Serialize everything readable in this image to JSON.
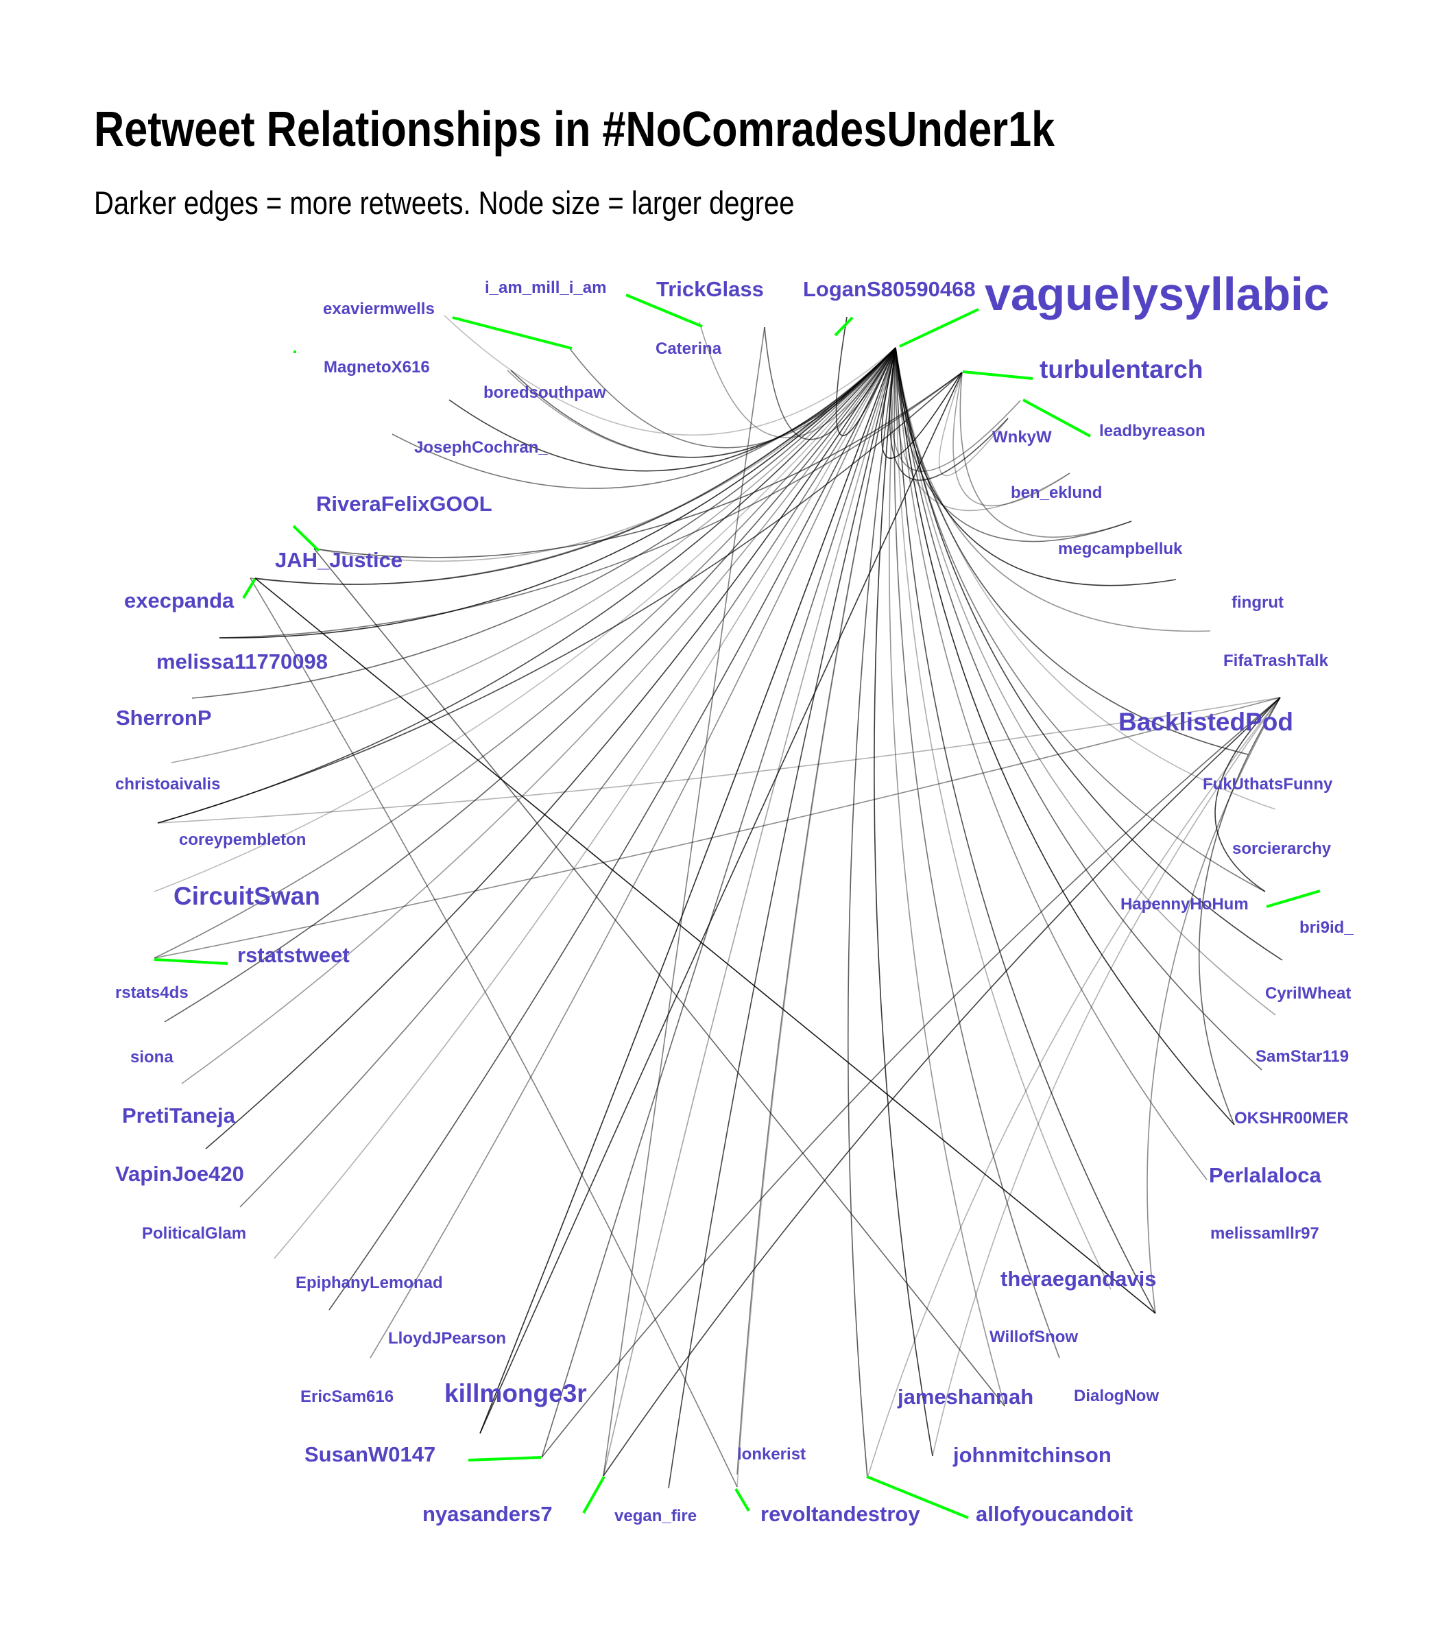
{
  "title": "Retweet Relationships in #NoComradesUnder1k",
  "subtitle": "Darker edges = more retweets. Node size = larger degree",
  "colors": {
    "label": "#5344c4",
    "leader": "#00ff00",
    "edge": "#000000"
  },
  "nodes": [
    {
      "id": "i_am_mill_i_am",
      "size": 1
    },
    {
      "id": "TrickGlass",
      "size": 2
    },
    {
      "id": "LoganS80590468",
      "size": 2
    },
    {
      "id": "vaguelysyllabic",
      "size": 5
    },
    {
      "id": "exaviermwells",
      "size": 1
    },
    {
      "id": "Caterina",
      "size": 1
    },
    {
      "id": "turbulentarch",
      "size": 3
    },
    {
      "id": "MagnetoX616",
      "size": 1
    },
    {
      "id": "boredsouthpaw",
      "size": 1
    },
    {
      "id": "leadbyreason",
      "size": 1
    },
    {
      "id": "WnkyW",
      "size": 1
    },
    {
      "id": "JosephCochran_",
      "size": 1
    },
    {
      "id": "ben_eklund",
      "size": 1
    },
    {
      "id": "RiveraFelixGOOL",
      "size": 2
    },
    {
      "id": "megcampbelluk",
      "size": 1
    },
    {
      "id": "JAH_Justice",
      "size": 2
    },
    {
      "id": "execpanda",
      "size": 2
    },
    {
      "id": "fingrut",
      "size": 1
    },
    {
      "id": "melissa11770098",
      "size": 2
    },
    {
      "id": "FifaTrashTalk",
      "size": 1
    },
    {
      "id": "SherronP",
      "size": 2
    },
    {
      "id": "BacklistedPod",
      "size": 3
    },
    {
      "id": "christoaivalis",
      "size": 1
    },
    {
      "id": "FukUthatsFunny",
      "size": 1
    },
    {
      "id": "coreypembleton",
      "size": 1
    },
    {
      "id": "sorcierarchy",
      "size": 1
    },
    {
      "id": "CircuitSwan",
      "size": 3
    },
    {
      "id": "HapennyHoHum",
      "size": 1
    },
    {
      "id": "bri9id_",
      "size": 1
    },
    {
      "id": "rstatstweet",
      "size": 2
    },
    {
      "id": "rstats4ds",
      "size": 1
    },
    {
      "id": "CyrilWheat",
      "size": 1
    },
    {
      "id": "siona",
      "size": 1
    },
    {
      "id": "SamStar119",
      "size": 1
    },
    {
      "id": "PretiTaneja",
      "size": 2
    },
    {
      "id": "OKSHR00MER",
      "size": 1
    },
    {
      "id": "VapinJoe420",
      "size": 2
    },
    {
      "id": "Perlalaloca",
      "size": 2
    },
    {
      "id": "PoliticalGlam",
      "size": 1
    },
    {
      "id": "melissamllr97",
      "size": 1
    },
    {
      "id": "EpiphanyLemonad",
      "size": 1
    },
    {
      "id": "theraegandavis",
      "size": 2
    },
    {
      "id": "LloydJPearson",
      "size": 1
    },
    {
      "id": "WillofSnow",
      "size": 1
    },
    {
      "id": "EricSam616",
      "size": 1
    },
    {
      "id": "killmonge3r",
      "size": 3
    },
    {
      "id": "jameshannah",
      "size": 2
    },
    {
      "id": "DialogNow",
      "size": 1
    },
    {
      "id": "SusanW0147",
      "size": 2
    },
    {
      "id": "johnmitchinson",
      "size": 2
    },
    {
      "id": "lonkerist",
      "size": 1
    },
    {
      "id": "nyasanders7",
      "size": 2
    },
    {
      "id": "vegan_fire",
      "size": 1
    },
    {
      "id": "revoltandestroy",
      "size": 2
    },
    {
      "id": "allofyoucandoit",
      "size": 2
    }
  ]
}
